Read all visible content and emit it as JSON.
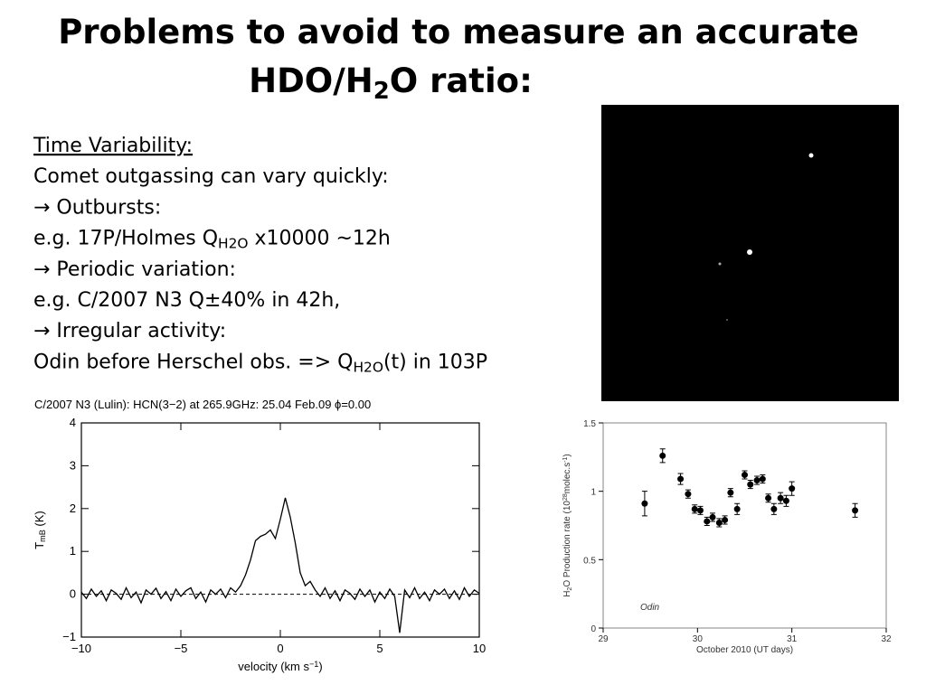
{
  "title": {
    "lines": [
      [
        {
          "text": "Problems to avoid to measure an accurate"
        }
      ],
      [
        {
          "text": "HDO/H"
        },
        {
          "text": "2",
          "script": "sub"
        },
        {
          "text": "O ratio:"
        }
      ]
    ]
  },
  "body": {
    "lines": [
      [
        {
          "text": "Time Variability:"
        }
      ],
      [
        {
          "text": "Comet outgassing can vary quickly:"
        }
      ],
      [
        {
          "text": "→ Outbursts:"
        }
      ],
      [
        {
          "text": "e.g. 17P/Holmes Q"
        },
        {
          "text": "H2O",
          "script": "sub"
        },
        {
          "text": " x10000 ~12h"
        }
      ],
      [
        {
          "text": "→ Periodic variation:"
        }
      ],
      [
        {
          "text": "e.g. C/2007 N3 Q±40% in 42h,"
        }
      ],
      [
        {
          "text": "→ Irregular activity:"
        }
      ],
      [
        {
          "text": "Odin before Herschel obs. => Q"
        },
        {
          "text": "H2O",
          "script": "sub"
        },
        {
          "text": "(t) in 103P"
        }
      ]
    ]
  },
  "chart_data": [
    {
      "type": "line",
      "title": "C/2007 N3 (Lulin): HCN(3−2) at 265.9GHz: 25.04 Feb.09 ϕ=0.00",
      "xlabel": [
        {
          "text": "velocity (km s"
        },
        {
          "text": "−1",
          "script": "sup"
        },
        {
          "text": ")"
        }
      ],
      "ylabel": [
        {
          "text": "T"
        },
        {
          "text": "mB",
          "script": "sub"
        },
        {
          "text": " (K)"
        }
      ],
      "color": "#000000",
      "x": [
        -10,
        -9.75,
        -9.5,
        -9.25,
        -9,
        -8.75,
        -8.5,
        -8.25,
        -8,
        -7.75,
        -7.5,
        -7.25,
        -7,
        -6.75,
        -6.5,
        -6.25,
        -6,
        -5.75,
        -5.5,
        -5.25,
        -5,
        -4.75,
        -4.5,
        -4.25,
        -4,
        -3.75,
        -3.5,
        -3.25,
        -3,
        -2.75,
        -2.5,
        -2.25,
        -2,
        -1.75,
        -1.5,
        -1.25,
        -1,
        -0.75,
        -0.5,
        -0.25,
        0,
        0.25,
        0.5,
        0.75,
        1,
        1.25,
        1.5,
        1.75,
        2,
        2.25,
        2.5,
        2.75,
        3,
        3.25,
        3.5,
        3.75,
        4,
        4.25,
        4.5,
        4.75,
        5,
        5.25,
        5.5,
        5.75,
        6,
        6.25,
        6.5,
        6.75,
        7,
        7.25,
        7.5,
        7.75,
        8,
        8.25,
        8.5,
        8.75,
        9,
        9.25,
        9.5,
        9.75,
        10
      ],
      "values": [
        0.05,
        -0.1,
        0.12,
        -0.05,
        0.08,
        -0.15,
        0.1,
        0.02,
        -0.12,
        0.15,
        -0.08,
        0.05,
        -0.2,
        0.1,
        0,
        0.14,
        -0.1,
        0.06,
        -0.15,
        0.12,
        -0.05,
        0.08,
        0.15,
        -0.1,
        0.05,
        -0.18,
        0.1,
        0,
        0.12,
        -0.08,
        0.15,
        0.05,
        0.2,
        0.45,
        0.8,
        1.25,
        1.35,
        1.4,
        1.5,
        1.3,
        1.75,
        2.25,
        1.8,
        1.2,
        0.5,
        0.2,
        0.3,
        0.1,
        -0.05,
        0.15,
        -0.1,
        0.08,
        -0.15,
        0.1,
        0.02,
        -0.12,
        0.12,
        -0.05,
        0.1,
        -0.18,
        0.05,
        -0.1,
        0.12,
        -0.05,
        -0.9,
        0.1,
        -0.08,
        0.15,
        -0.1,
        0.05,
        -0.15,
        0.1,
        0,
        0.12,
        -0.1,
        0.08,
        -0.12,
        0.15,
        -0.05,
        0.1,
        0.02
      ],
      "xlim": [
        -10,
        10
      ],
      "xticks": [
        {
          "value": -10,
          "label": "−10"
        },
        {
          "value": -5,
          "label": "−5"
        },
        0,
        5,
        10
      ],
      "ylim": [
        -1,
        4
      ],
      "yticks": [
        {
          "value": -1,
          "label": "−1"
        },
        0,
        1,
        2,
        3,
        4
      ]
    },
    {
      "type": "scatter",
      "annotation": "Odin",
      "xlabel": [
        {
          "text": "October 2010 (UT days)"
        }
      ],
      "ylabel": [
        {
          "text": "H"
        },
        {
          "text": "2",
          "script": "sub"
        },
        {
          "text": "O Production rate (10"
        },
        {
          "text": "28",
          "script": "sup"
        },
        {
          "text": "molec.s"
        },
        {
          "text": "-1",
          "script": "sup"
        },
        {
          "text": ")"
        }
      ],
      "color": "#000000",
      "x": [
        29.44,
        29.63,
        29.82,
        29.9,
        29.97,
        30.03,
        30.1,
        30.16,
        30.23,
        30.29,
        30.35,
        30.42,
        30.5,
        30.56,
        30.63,
        30.69,
        30.75,
        30.81,
        30.88,
        30.94,
        31.0,
        31.67
      ],
      "values": [
        0.91,
        1.26,
        1.09,
        0.98,
        0.87,
        0.86,
        0.78,
        0.81,
        0.77,
        0.79,
        0.99,
        0.87,
        1.12,
        1.05,
        1.08,
        1.09,
        0.95,
        0.87,
        0.95,
        0.93,
        1.02,
        0.86
      ],
      "errors": [
        0.09,
        0.05,
        0.04,
        0.03,
        0.03,
        0.03,
        0.03,
        0.03,
        0.03,
        0.03,
        0.03,
        0.04,
        0.03,
        0.03,
        0.03,
        0.03,
        0.03,
        0.04,
        0.04,
        0.04,
        0.05,
        0.05
      ],
      "xlim": [
        29,
        32
      ],
      "xticks": [
        29,
        30,
        31,
        32
      ],
      "ylim": [
        0,
        1.5
      ],
      "yticks": [
        0,
        0.5,
        1,
        1.5
      ]
    }
  ]
}
